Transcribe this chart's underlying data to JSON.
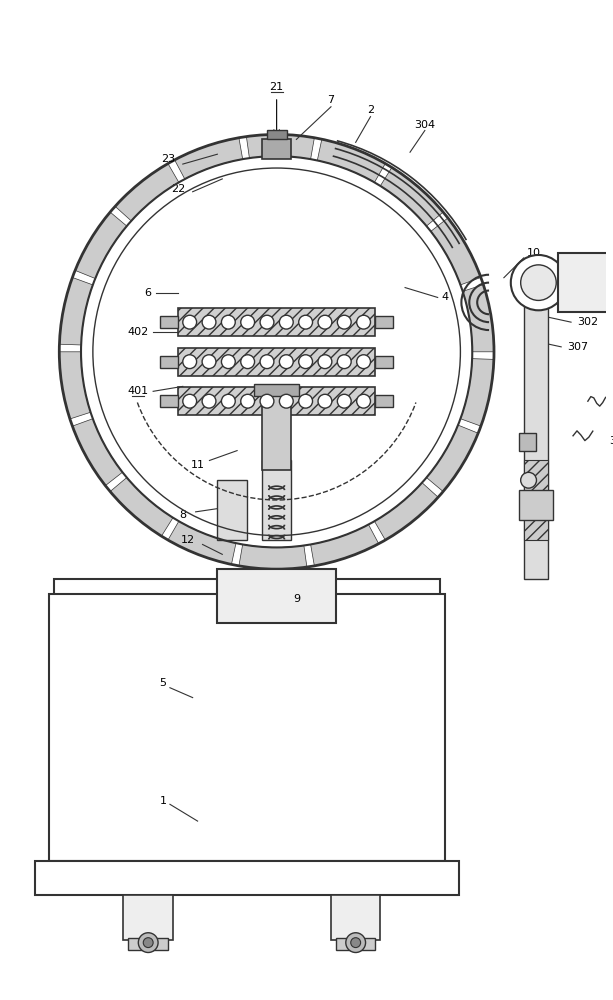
{
  "bg_color": "#ffffff",
  "line_color": "#333333",
  "hatch_color": "#555555",
  "fig_width": 6.13,
  "fig_height": 10.0,
  "dpi": 100
}
